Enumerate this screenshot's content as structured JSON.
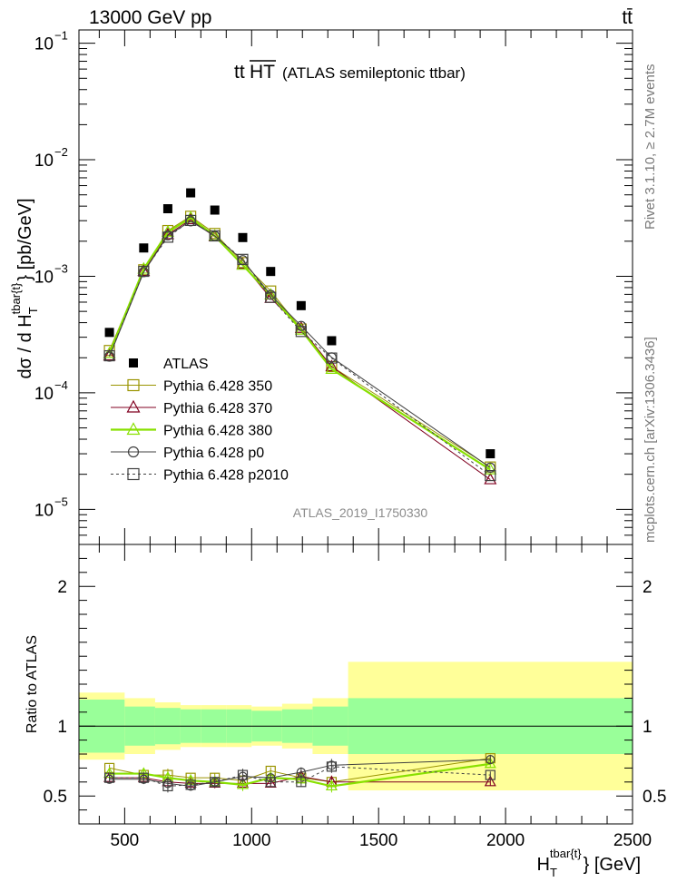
{
  "header": {
    "energy_label": "13000 GeV pp",
    "process_label": "tt̄",
    "side_rivet": "Rivet 3.1.10, ≥ 2.7M events",
    "side_mcplots": "mcplots.cern.ch [arXiv:1306.3436]",
    "analysis_id": "ATLAS_2019_I1750330",
    "plot_title_math": "tt",
    "plot_title_overline": "HT",
    "plot_title_desc": "(ATLAS semileptonic ttbar)"
  },
  "chart_data": {
    "type": "line",
    "main": {
      "ylabel": "dσ / d H_T^{tbar{t}} [pb/GeV]",
      "yscale": "log",
      "ylim": [
        5e-06,
        0.13
      ],
      "yticks": [
        1e-05,
        0.0001,
        0.001,
        0.01,
        0.1
      ],
      "ytick_labels": [
        "10",
        "10",
        "10",
        "10",
        "10"
      ],
      "ytick_exps": [
        "−5",
        "−4",
        "−3",
        "−2",
        "−1"
      ]
    },
    "ratio": {
      "ylabel": "Ratio to ATLAS",
      "ylim": [
        0.3,
        2.3
      ],
      "yticks": [
        0.5,
        1,
        2
      ],
      "ytick_labels": [
        "0.5",
        "1",
        "2"
      ]
    },
    "xlabel": "H_T^{tbar{t}} [GeV]",
    "xlim": [
      320,
      2500
    ],
    "xticks": [
      500,
      1000,
      1500,
      2000,
      2500
    ],
    "xtick_labels": [
      "500",
      "1000",
      "1500",
      "2000",
      "2500"
    ],
    "bins": [
      [
        320,
        500
      ],
      [
        500,
        620
      ],
      [
        620,
        720
      ],
      [
        720,
        800
      ],
      [
        800,
        900
      ],
      [
        900,
        1000
      ],
      [
        1000,
        1120
      ],
      [
        1120,
        1240
      ],
      [
        1240,
        1380
      ],
      [
        1380,
        2500
      ]
    ],
    "x": [
      440,
      575,
      670,
      760,
      855,
      965,
      1075,
      1195,
      1315,
      1940
    ],
    "data": {
      "name": "ATLAS",
      "values": [
        0.00033,
        0.00175,
        0.0038,
        0.0052,
        0.0037,
        0.00215,
        0.0011,
        0.00056,
        0.00028,
        3e-05
      ],
      "band_inner": [
        0.19,
        0.14,
        0.13,
        0.12,
        0.12,
        0.12,
        0.11,
        0.12,
        0.14,
        0.2
      ],
      "band_outer": [
        0.24,
        0.2,
        0.17,
        0.15,
        0.15,
        0.15,
        0.14,
        0.16,
        0.2,
        0.46
      ]
    },
    "series": [
      {
        "name": "Pythia 6.428 350",
        "color": "#9a9400",
        "marker": "square-open",
        "dash": "solid",
        "ratio": [
          0.7,
          0.65,
          0.65,
          0.63,
          0.63,
          0.61,
          0.68,
          0.63,
          0.6,
          0.77
        ]
      },
      {
        "name": "Pythia 6.428 370",
        "color": "#800020",
        "marker": "triangle-open",
        "dash": "solid",
        "ratio": [
          0.63,
          0.63,
          0.6,
          0.59,
          0.59,
          0.59,
          0.59,
          0.64,
          0.6,
          0.6
        ]
      },
      {
        "name": "Pythia 6.428 380",
        "color": "#88e000",
        "marker": "triangle-open",
        "dash": "solid",
        "ratio": [
          0.66,
          0.66,
          0.63,
          0.61,
          0.6,
          0.58,
          0.63,
          0.62,
          0.57,
          0.73
        ]
      },
      {
        "name": "Pythia 6.428 p0",
        "color": "#404040",
        "marker": "circle-open",
        "dash": "solid",
        "ratio": [
          0.62,
          0.62,
          0.59,
          0.57,
          0.6,
          0.64,
          0.63,
          0.67,
          0.72,
          0.76
        ]
      },
      {
        "name": "Pythia 6.428 p2010",
        "color": "#404040",
        "marker": "square-open",
        "dash": "dashed",
        "ratio": [
          0.63,
          0.63,
          0.57,
          0.58,
          0.6,
          0.65,
          0.6,
          0.6,
          0.71,
          0.65
        ]
      }
    ],
    "colors": {
      "band_inner": "#99ff99",
      "band_outer": "#ffff99"
    }
  }
}
